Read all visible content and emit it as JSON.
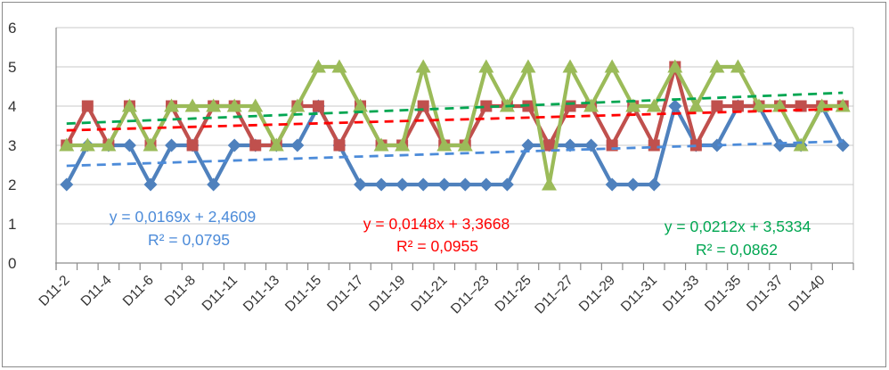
{
  "chart_data": {
    "type": "line",
    "title": "",
    "xlabel": "",
    "ylabel": "",
    "ylim": [
      0,
      6
    ],
    "yticks": [
      0,
      1,
      2,
      3,
      4,
      5,
      6
    ],
    "grid": true,
    "legend": "none",
    "n_points": 38,
    "x_tick_labels": [
      "D11-2",
      "D11-4",
      "D11-6",
      "D11-8",
      "D11-11",
      "D11-13",
      "D11-15",
      "D11-17",
      "D11-19",
      "D11-21",
      "D11–23",
      "D11-25",
      "D11–27",
      "D11-29",
      "D11-31",
      "D11-33",
      "D11-35",
      "D11-37",
      "D11-40"
    ],
    "label_every_n_points": 2,
    "series": [
      {
        "name": "blue",
        "marker": "diamond",
        "color": "#4F81BD",
        "values": [
          2,
          3,
          3,
          3,
          2,
          3,
          3,
          2,
          3,
          3,
          3,
          3,
          4,
          3,
          2,
          2,
          2,
          2,
          2,
          2,
          2,
          2,
          3,
          3,
          3,
          3,
          2,
          2,
          2,
          4,
          3,
          3,
          4,
          4,
          3,
          3,
          4,
          3
        ]
      },
      {
        "name": "red",
        "marker": "square",
        "color": "#C0504D",
        "values": [
          3,
          4,
          3,
          4,
          3,
          4,
          3,
          4,
          4,
          3,
          3,
          4,
          4,
          3,
          4,
          3,
          3,
          4,
          3,
          3,
          4,
          4,
          4,
          3,
          4,
          4,
          3,
          4,
          3,
          5,
          3,
          4,
          4,
          4,
          4,
          4,
          4,
          4
        ]
      },
      {
        "name": "green",
        "marker": "triangle",
        "color": "#9BBB59",
        "values": [
          3,
          3,
          3,
          4,
          3,
          4,
          4,
          4,
          4,
          4,
          3,
          4,
          5,
          5,
          4,
          3,
          3,
          5,
          3,
          3,
          5,
          4,
          5,
          2,
          5,
          4,
          5,
          4,
          4,
          5,
          4,
          5,
          5,
          4,
          4,
          3,
          4,
          4
        ]
      }
    ],
    "trendlines": [
      {
        "series": "blue",
        "color": "#4C8BD9",
        "slope": 0.0169,
        "intercept": 2.4609,
        "equation": "y = 0,0169x + 2,4609",
        "r2": "R² = 0,0795"
      },
      {
        "series": "red",
        "color": "#FF0000",
        "slope": 0.0148,
        "intercept": 3.3668,
        "equation": "y = 0,0148x + 3,3668",
        "r2": "R² = 0,0955"
      },
      {
        "series": "green",
        "color": "#00A651",
        "slope": 0.0212,
        "intercept": 3.5334,
        "equation": "y = 0,0212x + 3,5334",
        "r2": "R² = 0,0862"
      }
    ],
    "axis_colors": {
      "gridline": "#C8C8C8",
      "axis_line": "#8C8C8C",
      "tick_label": "#333333"
    },
    "frame_border_color": "#8A8A8A",
    "background_color": "#FFFFFF"
  }
}
